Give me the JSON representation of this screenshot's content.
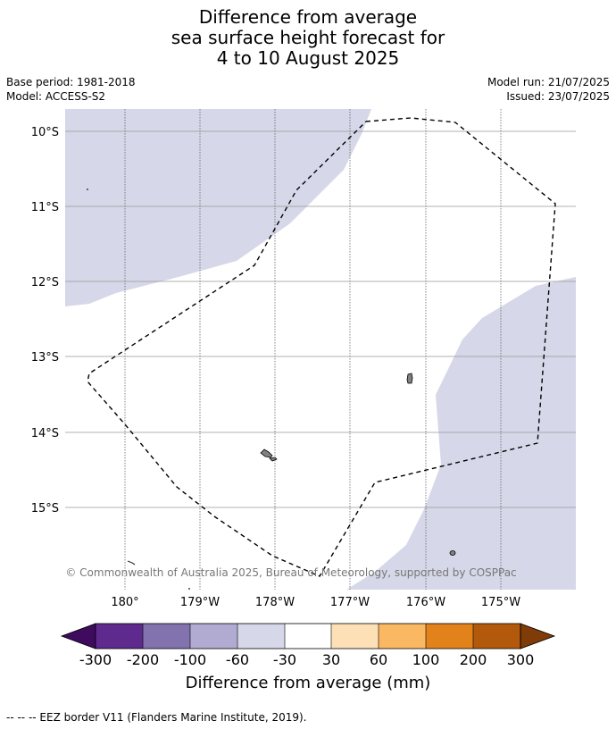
{
  "title": {
    "line1": "Difference from average",
    "line2": "sea surface height forecast for",
    "line3": "4 to 10 August 2025"
  },
  "meta": {
    "base_period": "Base period: 1981-2018",
    "model": "Model: ACCESS-S2",
    "model_run": "Model run: 21/07/2025",
    "issued": "Issued: 23/07/2025"
  },
  "map": {
    "lat_labels": [
      "10°S",
      "11°S",
      "12°S",
      "13°S",
      "14°S",
      "15°S"
    ],
    "lon_labels": [
      "180°",
      "179°W",
      "178°W",
      "177°W",
      "176°W",
      "175°W"
    ],
    "copyright": "© Commonwealth of Australia 2025, Bureau of Meteorology, supported by COSPPac",
    "colors": {
      "negative_30_60": "#d6d7e8",
      "land": "#808080",
      "gridline": "#999999"
    }
  },
  "colorbar": {
    "ticks": [
      "-300",
      "-200",
      "-100",
      "-60",
      "-30",
      "30",
      "60",
      "100",
      "200",
      "300"
    ],
    "colors": [
      "#3f0b5f",
      "#5e2a8e",
      "#8272ae",
      "#b1abd2",
      "#d6d7e8",
      "#ffffff",
      "#fde0b5",
      "#fbb862",
      "#e2821b",
      "#b3590b",
      "#7f3b08"
    ],
    "label": "Difference from average (mm)"
  },
  "footer": {
    "eez_note": "--  --  -- EEZ border V11 (Flanders Marine Institute, 2019)."
  }
}
